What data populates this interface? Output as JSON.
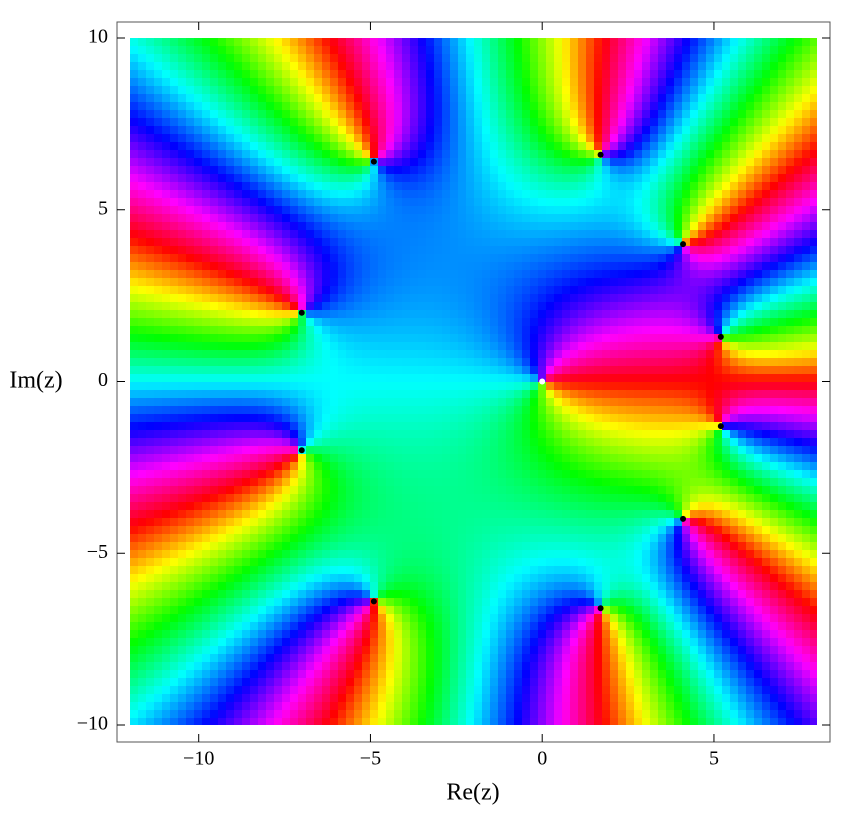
{
  "chart_data": {
    "type": "domain-coloring",
    "x_label": "Re(z)",
    "y_label": "Im(z)",
    "x": [
      0,
      -7,
      -7,
      -4.9,
      -4.9,
      1.7,
      1.7,
      4.1,
      4.1,
      5.2,
      5.2
    ],
    "values": [
      0,
      2,
      -2,
      6.4,
      -6.4,
      6.6,
      -6.6,
      4,
      -4,
      1.3,
      -1.3
    ],
    "xlim": [
      -12,
      8
    ],
    "ylim": [
      -10,
      10
    ],
    "xticks": [
      {
        "value": -10,
        "label": "−10"
      },
      {
        "value": -5,
        "label": "−5"
      },
      0,
      5
    ],
    "yticks": [
      {
        "value": -10,
        "label": "−10"
      },
      {
        "value": -5,
        "label": "−5"
      },
      0,
      5,
      10
    ]
  }
}
